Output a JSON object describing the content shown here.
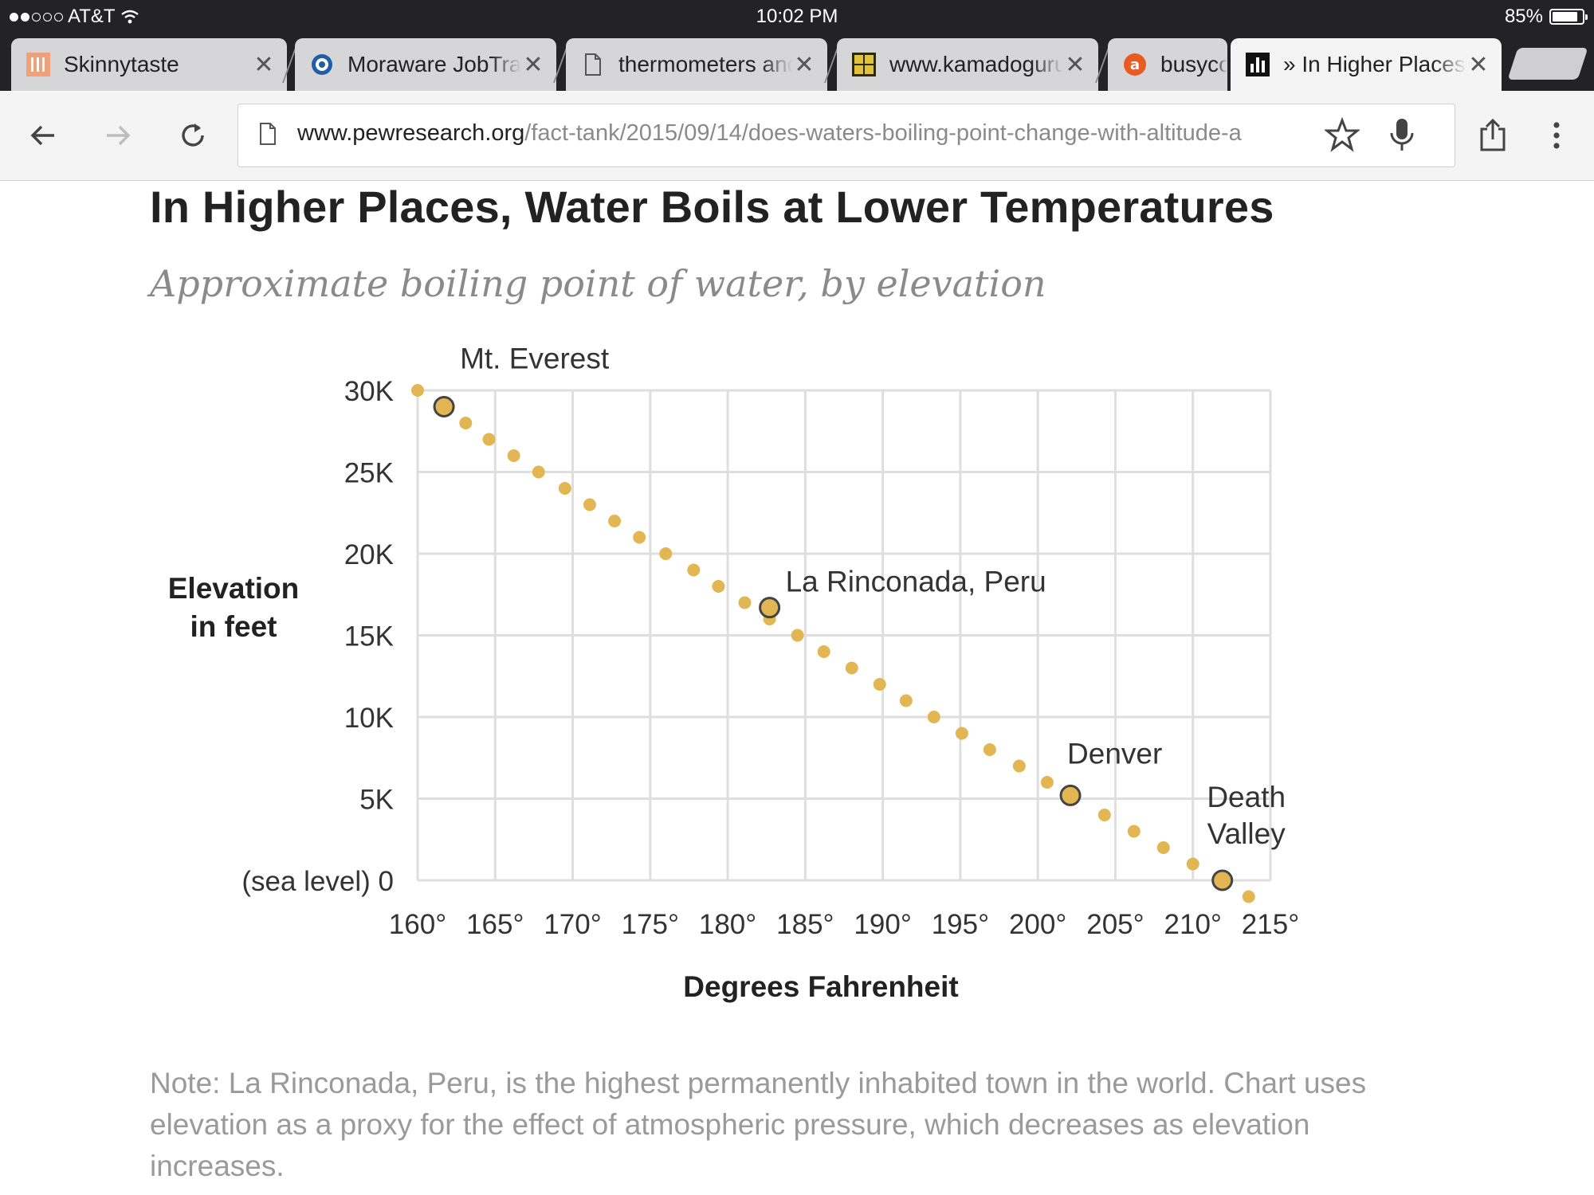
{
  "status_bar": {
    "carrier": "AT&T",
    "time": "10:02 PM",
    "battery": "85%",
    "battery_level": 0.85
  },
  "tabs": [
    {
      "title": "Skinnytaste",
      "icon": "skinnytaste-favicon",
      "active": false
    },
    {
      "title": "Moraware JobTracker",
      "icon": "moraware-favicon",
      "active": false
    },
    {
      "title": "thermometers and",
      "icon": "page-icon",
      "active": false
    },
    {
      "title": "www.kamadoguru",
      "icon": "guru-favicon",
      "active": false
    },
    {
      "title": "busycooks",
      "icon": "about-favicon",
      "active": false
    },
    {
      "title": "» In Higher Places",
      "icon": "chart-favicon",
      "active": true
    }
  ],
  "toolbar": {
    "url_host": "www.pewresearch.org",
    "url_path": "/fact-tank/2015/09/14/does-waters-boiling-point-change-with-altitude-a"
  },
  "article": {
    "note": "Note: La Rinconada, Peru, is the highest permanently inhabited town in the world. Chart uses elevation as a proxy for the effect of atmospheric pressure, which decreases as elevation increases."
  },
  "chart_data": {
    "type": "scatter",
    "title": "In Higher Places, Water Boils at Lower Temperatures",
    "subtitle": "Approximate boiling point of water, by elevation",
    "xlabel": "Degrees Fahrenheit",
    "ylabel": "Elevation in feet",
    "xlim": [
      160,
      215
    ],
    "ylim": [
      0,
      30000
    ],
    "x_ticks": [
      "160°",
      "165°",
      "170°",
      "175°",
      "180°",
      "185°",
      "190°",
      "195°",
      "200°",
      "205°",
      "210°",
      "215°"
    ],
    "y_ticks": [
      "(sea level) 0",
      "5K",
      "10K",
      "15K",
      "20K",
      "25K",
      "30K"
    ],
    "grid": true,
    "point_color": "#e2b753",
    "series": [
      {
        "points": [
          [
            160.0,
            30000
          ],
          [
            163.1,
            28000
          ],
          [
            164.6,
            27000
          ],
          [
            166.2,
            26000
          ],
          [
            167.8,
            25000
          ],
          [
            169.5,
            24000
          ],
          [
            171.1,
            23000
          ],
          [
            172.7,
            22000
          ],
          [
            174.3,
            21000
          ],
          [
            176.0,
            20000
          ],
          [
            177.8,
            19000
          ],
          [
            179.4,
            18000
          ],
          [
            181.1,
            17000
          ],
          [
            182.7,
            16000
          ],
          [
            184.5,
            15000
          ],
          [
            186.2,
            14000
          ],
          [
            188.0,
            13000
          ],
          [
            189.8,
            12000
          ],
          [
            191.5,
            11000
          ],
          [
            193.3,
            10000
          ],
          [
            195.1,
            9000
          ],
          [
            196.9,
            8000
          ],
          [
            198.8,
            7000
          ],
          [
            200.6,
            6000
          ],
          [
            204.3,
            4000
          ],
          [
            206.2,
            3000
          ],
          [
            208.1,
            2000
          ],
          [
            210.0,
            1000
          ],
          [
            213.6,
            -1000
          ]
        ]
      }
    ],
    "highlights": [
      {
        "label": "Mt. Everest",
        "x": 161.7,
        "y": 29000
      },
      {
        "label": "La Rinconada, Peru",
        "x": 182.7,
        "y": 16700
      },
      {
        "label": "Denver",
        "x": 202.1,
        "y": 5200
      },
      {
        "label": "Death Valley",
        "x": 211.9,
        "y": 0
      }
    ]
  }
}
